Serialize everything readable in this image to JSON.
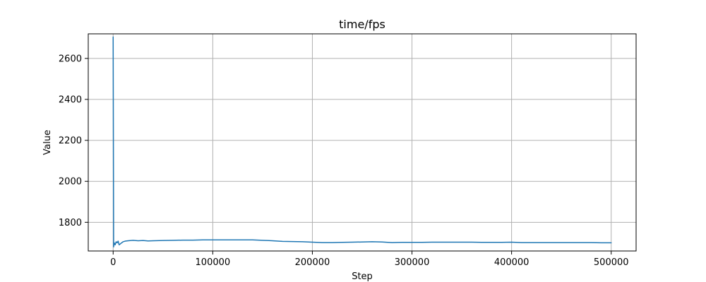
{
  "chart_data": {
    "type": "line",
    "title": "time/fps",
    "xlabel": "Step",
    "ylabel": "Value",
    "xlim": [
      -25000,
      525000
    ],
    "ylim": [
      1660,
      2720
    ],
    "xticks": [
      0,
      100000,
      200000,
      300000,
      400000,
      500000
    ],
    "xtick_labels": [
      "0",
      "100000",
      "200000",
      "300000",
      "400000",
      "500000"
    ],
    "yticks": [
      1800,
      2000,
      2200,
      2400,
      2600
    ],
    "ytick_labels": [
      "1800",
      "2000",
      "2200",
      "2400",
      "2600"
    ],
    "grid": true,
    "series": [
      {
        "color": "#1f77b4",
        "x": [
          0,
          500,
          1000,
          2000,
          3000,
          4000,
          5000,
          6000,
          8000,
          10000,
          12000,
          15000,
          20000,
          25000,
          30000,
          35000,
          40000,
          50000,
          60000,
          70000,
          80000,
          90000,
          100000,
          110000,
          120000,
          130000,
          140000,
          150000,
          160000,
          170000,
          180000,
          190000,
          200000,
          210000,
          220000,
          230000,
          240000,
          250000,
          260000,
          270000,
          280000,
          290000,
          300000,
          310000,
          320000,
          330000,
          340000,
          350000,
          360000,
          370000,
          380000,
          390000,
          400000,
          410000,
          420000,
          430000,
          440000,
          450000,
          460000,
          470000,
          480000,
          490000,
          500000
        ],
        "y": [
          2705,
          1680,
          1700,
          1690,
          1705,
          1700,
          1708,
          1690,
          1698,
          1705,
          1708,
          1710,
          1712,
          1710,
          1711,
          1709,
          1710,
          1711,
          1712,
          1713,
          1713,
          1714,
          1714,
          1714,
          1714,
          1714,
          1714,
          1712,
          1710,
          1707,
          1706,
          1705,
          1703,
          1701,
          1701,
          1702,
          1703,
          1704,
          1705,
          1704,
          1701,
          1702,
          1702,
          1702,
          1703,
          1703,
          1703,
          1703,
          1703,
          1702,
          1702,
          1702,
          1703,
          1701,
          1701,
          1701,
          1701,
          1701,
          1701,
          1701,
          1701,
          1700,
          1700
        ]
      }
    ]
  }
}
